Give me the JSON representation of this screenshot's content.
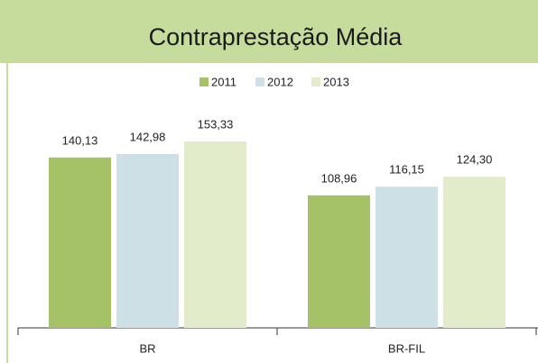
{
  "chart_data": {
    "type": "bar",
    "title": "Contraprestação Média",
    "categories": [
      "BR",
      "BR-FIL"
    ],
    "series": [
      {
        "name": "2011",
        "color": "#a5c266",
        "values": [
          140.13,
          108.96
        ],
        "value_labels": [
          "140,13",
          "108,96"
        ]
      },
      {
        "name": "2012",
        "color": "#cde0e6",
        "values": [
          142.98,
          116.15
        ],
        "value_labels": [
          "142,98",
          "116,15"
        ]
      },
      {
        "name": "2013",
        "color": "#e2ecca",
        "values": [
          153.33,
          124.3
        ],
        "value_labels": [
          "153,33",
          "124,30"
        ]
      }
    ],
    "ylim": [
      0,
      200
    ]
  }
}
